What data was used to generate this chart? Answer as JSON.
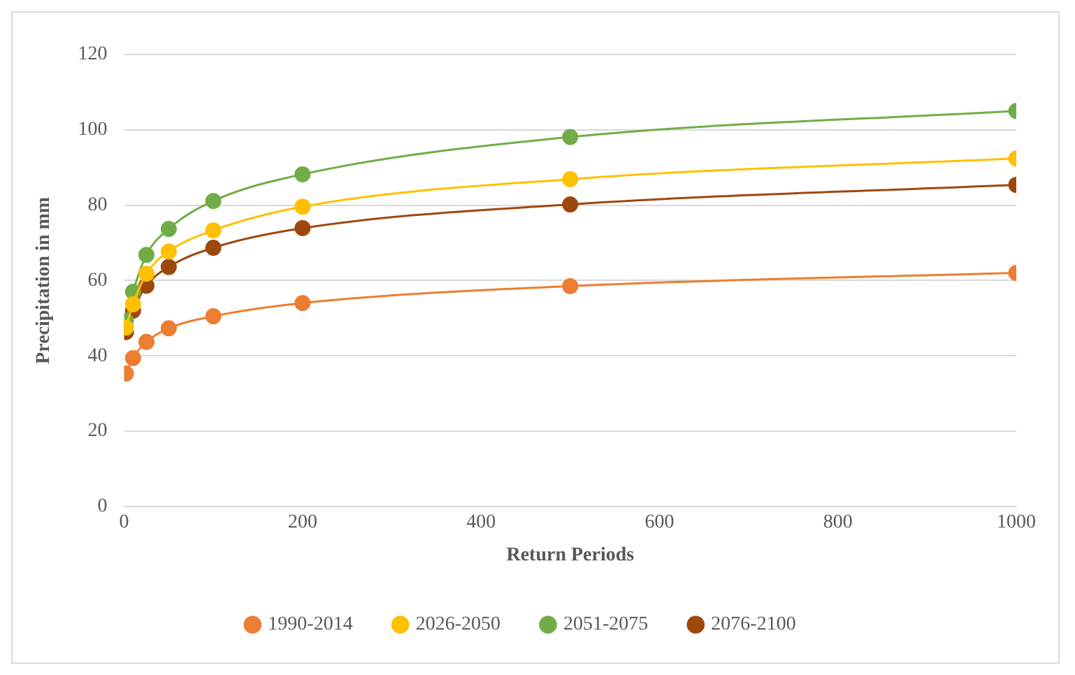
{
  "chart_data": {
    "type": "line",
    "xlabel": "Return Periods",
    "ylabel": "Precipitation in mm",
    "x": [
      2,
      10,
      25,
      50,
      100,
      200,
      500,
      1000
    ],
    "series": [
      {
        "name": "1990-2014",
        "color": "#ed7d31",
        "values": [
          35.3,
          39.4,
          43.7,
          47.3,
          50.5,
          54.0,
          58.5,
          62.0
        ]
      },
      {
        "name": "2026-2050",
        "color": "#ffc000",
        "values": [
          47.5,
          53.7,
          61.8,
          67.7,
          73.3,
          79.6,
          86.9,
          92.4
        ]
      },
      {
        "name": "2051-2075",
        "color": "#70ad47",
        "values": [
          49.3,
          57.0,
          66.8,
          73.7,
          81.1,
          88.2,
          98.1,
          105.0
        ]
      },
      {
        "name": "2076-2100",
        "color": "#9e480e",
        "values": [
          46.3,
          52.0,
          58.6,
          63.6,
          68.7,
          73.9,
          80.2,
          85.4
        ]
      }
    ],
    "xlim": [
      0,
      1000
    ],
    "xticks": [
      0,
      200,
      400,
      600,
      800,
      1000
    ],
    "ylim": [
      0,
      120
    ],
    "yticks": [
      0,
      20,
      40,
      60,
      80,
      100,
      120
    ],
    "grid": "y",
    "legend": "bottom",
    "marker": "circle",
    "line_style": "solid"
  }
}
